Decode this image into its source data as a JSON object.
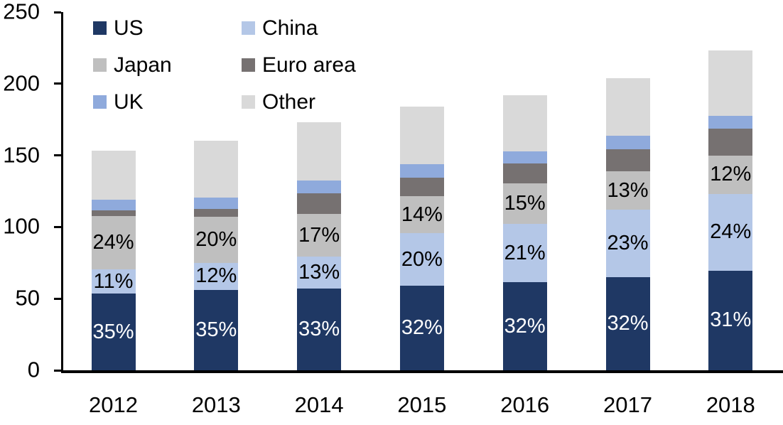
{
  "chart_data": {
    "type": "bar",
    "stacked": true,
    "title": "",
    "xlabel": "",
    "ylabel": "",
    "categories": [
      "2012",
      "2013",
      "2014",
      "2015",
      "2016",
      "2017",
      "2018"
    ],
    "series": [
      {
        "name": "US",
        "color": "#1f3864",
        "values": [
          53.5,
          56,
          57,
          59,
          61.5,
          65,
          69.5
        ],
        "labels": [
          "35%",
          "35%",
          "33%",
          "32%",
          "32%",
          "32%",
          "31%"
        ],
        "label_color": "#ffffff"
      },
      {
        "name": "China",
        "color": "#b4c7e7",
        "values": [
          17,
          19,
          22.5,
          36.5,
          40.5,
          47,
          53.5
        ],
        "labels": [
          "11%",
          "12%",
          "13%",
          "20%",
          "21%",
          "23%",
          "24%"
        ],
        "label_color": "#000000"
      },
      {
        "name": "Japan",
        "color": "#bfbfbf",
        "values": [
          37,
          32,
          29.5,
          26,
          28.5,
          27,
          27
        ],
        "labels": [
          "24%",
          "20%",
          "17%",
          "14%",
          "15%",
          "13%",
          "12%"
        ],
        "label_color": "#000000"
      },
      {
        "name": "Euro area",
        "color": "#767171",
        "values": [
          4,
          5.5,
          14.5,
          13,
          14,
          15.5,
          18.5
        ],
        "labels": null,
        "label_color": "#000000"
      },
      {
        "name": "UK",
        "color": "#8faadc",
        "values": [
          7.5,
          8,
          9,
          9.5,
          8.5,
          9,
          9
        ],
        "labels": null,
        "label_color": "#000000"
      },
      {
        "name": "Other",
        "color": "#d9d9d9",
        "values": [
          34.5,
          39.5,
          40.5,
          40,
          39,
          40.5,
          45.5
        ],
        "labels": null,
        "label_color": "#000000"
      }
    ],
    "totals": [
      153.5,
      160,
      173,
      184,
      192,
      204,
      223
    ],
    "y_axis": {
      "min": 0,
      "max": 250,
      "step": 50,
      "tick_labels": [
        "0",
        "50",
        "100",
        "150",
        "200",
        "250"
      ]
    },
    "legend": {
      "position": "top-left",
      "columns": 2,
      "order": [
        "US",
        "China",
        "Japan",
        "Euro area",
        "UK",
        "Other"
      ]
    },
    "grid": false,
    "axis_color": "#000000",
    "background": "#ffffff"
  }
}
